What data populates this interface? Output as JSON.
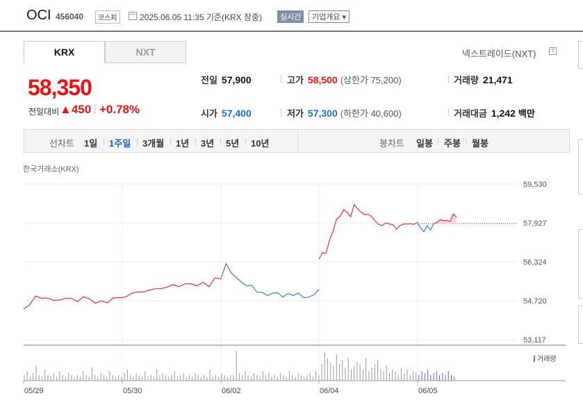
{
  "header": {
    "name": "OCI",
    "code": "456040",
    "market": "코스피",
    "datetime": "2025.06.05 11:35 기준(KRX 장중)",
    "realtime": "실시간",
    "company_info": "기업개요 ▾"
  },
  "tabs": [
    {
      "label": "KRX"
    },
    {
      "label": "NXT"
    }
  ],
  "nextrade": "넥스트레이드(NXT)",
  "price": {
    "current": "58,350",
    "change_label": "전일대비",
    "change": "▲450",
    "change_pct": "+0.78%"
  },
  "stats": {
    "prev": {
      "label": "전일",
      "value": "57,900"
    },
    "high": {
      "label": "고가",
      "value": "58,500",
      "sub": "(상한가 75,200)"
    },
    "volume": {
      "label": "거래량",
      "value": "21,471"
    },
    "open": {
      "label": "시가",
      "value": "57,400"
    },
    "low": {
      "label": "저가",
      "value": "57,300",
      "sub": "(하한가 40,600)"
    },
    "amount": {
      "label": "거래대금",
      "value": "1,242",
      "unit": "백만"
    }
  },
  "period": {
    "line_label": "선차트",
    "line_items": [
      "1일",
      "1주일",
      "3개월",
      "1년",
      "3년",
      "5년",
      "10년"
    ],
    "selected": "1주일",
    "candle_label": "봉차트",
    "candle_items": [
      "일봉",
      "주봉",
      "월봉"
    ]
  },
  "chart_meta": {
    "exchange_label": "한국거래소(KRX)",
    "volume_legend": "거래량"
  },
  "chart_data": {
    "type": "line",
    "ylim": [
      53117,
      59530
    ],
    "y_ticks": [
      "59,530",
      "57,927",
      "56,324",
      "54,720",
      "53,117"
    ],
    "x_ticks": [
      "05/29",
      "05/30",
      "06/02",
      "06/04",
      "06/05"
    ],
    "reference_price": 57900,
    "colors": {
      "up": "#e0343b",
      "down": "#2f7fd6",
      "reference": "#555555",
      "volume": "#999999",
      "volume_recent": "#6b5fc8"
    },
    "series": [
      {
        "values": [
          54350,
          54550,
          54950,
          54800,
          54850,
          54700,
          54750,
          54850,
          54800,
          54700,
          54850,
          54800,
          54650,
          54700,
          54650,
          54800,
          54850,
          54900,
          55000,
          55100,
          55050,
          55150,
          55250,
          55200,
          55300,
          55350,
          55300,
          55450,
          55400,
          55350,
          55450,
          55300,
          55700,
          55600
        ]
      },
      {
        "values": [
          55600,
          56250,
          55900,
          55650,
          55500,
          55300,
          55350,
          55100,
          55050,
          54950,
          55000,
          55050,
          54900,
          55000,
          54950,
          55000,
          54850,
          54900,
          54950,
          55200
        ]
      },
      {
        "values": [
          56400,
          56700,
          56700,
          57200,
          57600,
          58050,
          58200,
          58500,
          58350,
          58200,
          58650,
          58500,
          58400,
          58250,
          58300,
          58150,
          58000,
          57900,
          57800,
          57950,
          57850,
          57850,
          57700,
          57800,
          57900,
          57850,
          57900,
          57900,
          57950
        ]
      },
      {
        "values": [
          57900,
          57700,
          57600,
          57800,
          57650,
          57850
        ]
      },
      {
        "values": [
          57850,
          57950,
          58100,
          58000,
          58050,
          57950,
          58300,
          58200
        ]
      }
    ],
    "volume": [
      3,
      5,
      2,
      4,
      8,
      3,
      2,
      6,
      3,
      2,
      4,
      2,
      5,
      3,
      2,
      4,
      3,
      2,
      3,
      2,
      5,
      3,
      2,
      7,
      3,
      2,
      4,
      3,
      2,
      5,
      3,
      2,
      3,
      2,
      4,
      6,
      3,
      2,
      4,
      3,
      2,
      5,
      2,
      3,
      2,
      6,
      3,
      4,
      3,
      2,
      3,
      5,
      2,
      3,
      4,
      2,
      3,
      2,
      4,
      3,
      2,
      3,
      2,
      6,
      2,
      3,
      2,
      4,
      3,
      2,
      3,
      3,
      16,
      4,
      3,
      5,
      3,
      2,
      4,
      3,
      2,
      5,
      3,
      4,
      2,
      3,
      2,
      4,
      3,
      2,
      5,
      3,
      2,
      4,
      3,
      2,
      3,
      4,
      2,
      5,
      3,
      9,
      15,
      12,
      10,
      8,
      14,
      9,
      11,
      7,
      12,
      6,
      8,
      10,
      9,
      6,
      12,
      5,
      7,
      9,
      11,
      6,
      5,
      8,
      4,
      6,
      5,
      3,
      7,
      4,
      6,
      3,
      5,
      4,
      3,
      5,
      4,
      6,
      3,
      4,
      5,
      3,
      4,
      3,
      5,
      3,
      2
    ]
  }
}
